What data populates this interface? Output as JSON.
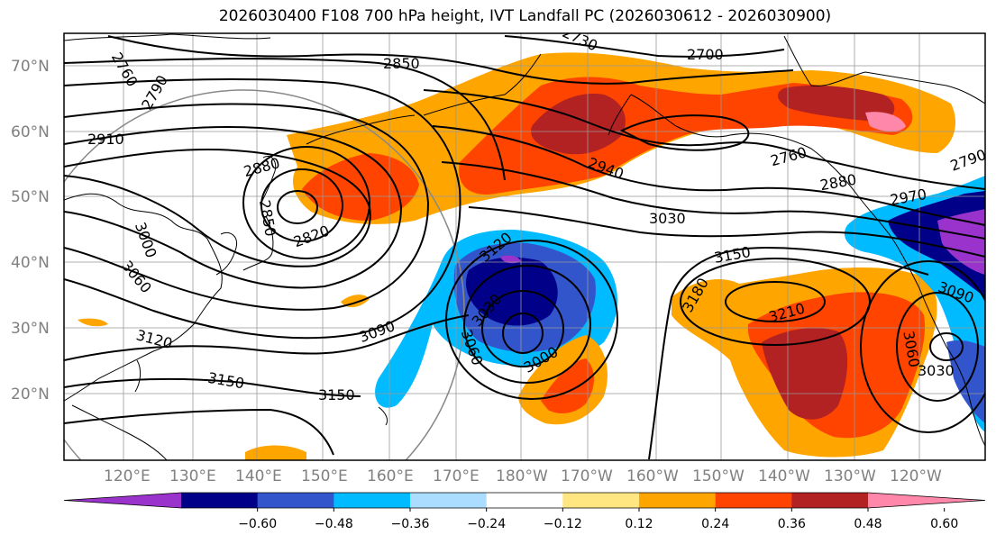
{
  "title": "2026030400 F108 700 hPa height, IVT Landfall PC (2026030612 - 2026030900)",
  "map": {
    "lon_labels": [
      "120°E",
      "130°E",
      "140°E",
      "150°E",
      "160°E",
      "170°E",
      "180°W",
      "170°W",
      "160°W",
      "150°W",
      "140°W",
      "130°W",
      "120°W"
    ],
    "lat_labels": [
      "70°N",
      "60°N",
      "50°N",
      "40°N",
      "30°N",
      "20°N"
    ],
    "contour_labels": [
      "2760",
      "2790",
      "2850",
      "2730",
      "2700",
      "2910",
      "2880",
      "2850",
      "2820",
      "3000",
      "3060",
      "3090",
      "3120",
      "3150",
      "3150",
      "2940",
      "2760",
      "2880",
      "2970",
      "2790",
      "3030",
      "3120",
      "3030",
      "3060",
      "3000",
      "3150",
      "3180",
      "3210",
      "3090",
      "3060",
      "3030"
    ]
  },
  "colorbar": {
    "ticks": [
      "−0.60",
      "−0.48",
      "−0.36",
      "−0.24",
      "−0.12",
      "0.12",
      "0.24",
      "0.36",
      "0.48",
      "0.60"
    ],
    "colors": [
      "#9933cc",
      "#000088",
      "#3355cc",
      "#00bbff",
      "#aaddff",
      "#ffffff",
      "#ffe680",
      "#ffa500",
      "#ff4400",
      "#b22222",
      "#ff88aa"
    ]
  }
}
